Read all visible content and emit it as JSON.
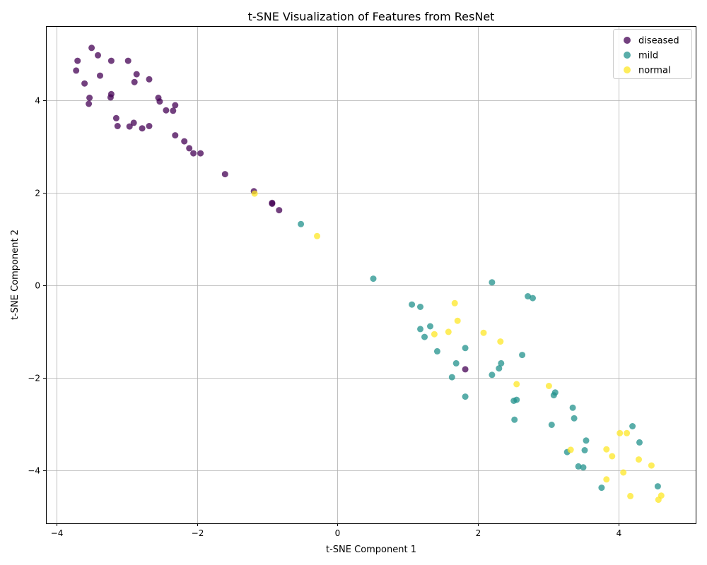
{
  "chart_data": {
    "type": "scatter",
    "title": "t-SNE Visualization of Features from ResNet",
    "xlabel": "t-SNE Component 1",
    "ylabel": "t-SNE Component 2",
    "xlim": [
      -4.15,
      5.1
    ],
    "ylim": [
      -5.15,
      5.6
    ],
    "xticks": [
      -4,
      -2,
      0,
      2,
      4
    ],
    "yticks": [
      -4,
      -2,
      0,
      2,
      4
    ],
    "grid": true,
    "legend_position": "top-right",
    "series": [
      {
        "name": "diseased",
        "color": "#440154",
        "points": [
          [
            -3.5,
            5.13
          ],
          [
            -3.41,
            4.97
          ],
          [
            -3.7,
            4.85
          ],
          [
            -3.22,
            4.85
          ],
          [
            -2.98,
            4.85
          ],
          [
            -3.72,
            4.64
          ],
          [
            -2.86,
            4.56
          ],
          [
            -3.38,
            4.53
          ],
          [
            -2.68,
            4.45
          ],
          [
            -2.89,
            4.39
          ],
          [
            -3.6,
            4.36
          ],
          [
            -3.22,
            4.13
          ],
          [
            -3.23,
            4.06
          ],
          [
            -3.53,
            4.05
          ],
          [
            -2.55,
            4.05
          ],
          [
            -2.53,
            3.97
          ],
          [
            -3.54,
            3.92
          ],
          [
            -2.31,
            3.89
          ],
          [
            -2.44,
            3.78
          ],
          [
            -2.34,
            3.77
          ],
          [
            -3.15,
            3.61
          ],
          [
            -2.9,
            3.51
          ],
          [
            -3.13,
            3.44
          ],
          [
            -2.96,
            3.43
          ],
          [
            -2.68,
            3.44
          ],
          [
            -2.78,
            3.39
          ],
          [
            -2.31,
            3.24
          ],
          [
            -2.18,
            3.11
          ],
          [
            -2.11,
            2.96
          ],
          [
            -2.05,
            2.85
          ],
          [
            -1.95,
            2.85
          ],
          [
            -1.6,
            2.4
          ],
          [
            -1.19,
            2.03
          ],
          [
            -0.93,
            1.78
          ],
          [
            -0.93,
            1.76
          ],
          [
            -0.83,
            1.62
          ],
          [
            1.82,
            -1.82
          ]
        ]
      },
      {
        "name": "mild",
        "color": "#21918c",
        "points": [
          [
            -0.52,
            1.32
          ],
          [
            0.51,
            0.14
          ],
          [
            2.2,
            0.06
          ],
          [
            2.71,
            -0.24
          ],
          [
            2.78,
            -0.28
          ],
          [
            1.06,
            -0.42
          ],
          [
            1.18,
            -0.47
          ],
          [
            1.32,
            -0.89
          ],
          [
            1.18,
            -0.95
          ],
          [
            1.24,
            -1.12
          ],
          [
            1.82,
            -1.36
          ],
          [
            1.42,
            -1.43
          ],
          [
            2.63,
            -1.51
          ],
          [
            1.69,
            -1.69
          ],
          [
            2.33,
            -1.69
          ],
          [
            2.3,
            -1.8
          ],
          [
            2.2,
            -1.94
          ],
          [
            1.63,
            -1.99
          ],
          [
            1.82,
            -2.41
          ],
          [
            3.1,
            -2.32
          ],
          [
            3.08,
            -2.38
          ],
          [
            2.55,
            -2.48
          ],
          [
            2.51,
            -2.5
          ],
          [
            3.35,
            -2.65
          ],
          [
            3.37,
            -2.88
          ],
          [
            2.52,
            -2.91
          ],
          [
            3.05,
            -3.02
          ],
          [
            4.2,
            -3.05
          ],
          [
            3.54,
            -3.36
          ],
          [
            4.3,
            -3.4
          ],
          [
            3.52,
            -3.57
          ],
          [
            3.27,
            -3.61
          ],
          [
            3.43,
            -3.92
          ],
          [
            3.5,
            -3.94
          ],
          [
            4.56,
            -4.35
          ],
          [
            3.76,
            -4.38
          ]
        ]
      },
      {
        "name": "normal",
        "color": "#fde725",
        "points": [
          [
            -1.18,
            1.98
          ],
          [
            -0.29,
            1.06
          ],
          [
            1.67,
            -0.39
          ],
          [
            1.71,
            -0.77
          ],
          [
            1.58,
            -1.01
          ],
          [
            1.38,
            -1.06
          ],
          [
            2.08,
            -1.03
          ],
          [
            2.32,
            -1.22
          ],
          [
            2.55,
            -2.14
          ],
          [
            3.01,
            -2.18
          ],
          [
            4.02,
            -3.2
          ],
          [
            4.12,
            -3.2
          ],
          [
            3.83,
            -3.55
          ],
          [
            3.32,
            -3.56
          ],
          [
            3.91,
            -3.7
          ],
          [
            4.29,
            -3.77
          ],
          [
            4.47,
            -3.9
          ],
          [
            4.07,
            -4.05
          ],
          [
            3.83,
            -4.2
          ],
          [
            4.17,
            -4.56
          ],
          [
            4.61,
            -4.55
          ],
          [
            4.57,
            -4.64
          ]
        ]
      }
    ]
  }
}
